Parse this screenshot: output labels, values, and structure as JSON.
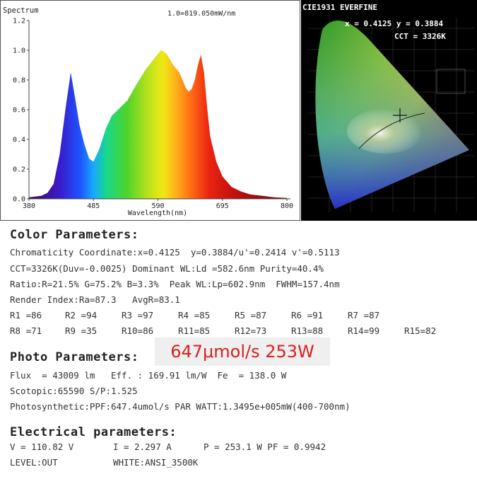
{
  "spectrum": {
    "title": "Spectrum",
    "scale_note": "1.0=819.050mW/nm",
    "xlabel": "Wavelength(nm)",
    "x_ticks": [
      "380",
      "485",
      "590",
      "695",
      "800"
    ],
    "y_ticks": [
      "0.0",
      "0.2",
      "0.4",
      "0.6",
      "0.8",
      "1.0",
      "1.2"
    ]
  },
  "chart_data": {
    "type": "area",
    "title": "Spectrum",
    "xlabel": "Wavelength(nm)",
    "ylabel": "",
    "xlim": [
      380,
      800
    ],
    "ylim": [
      0,
      1.2
    ],
    "x": [
      380,
      400,
      410,
      420,
      430,
      440,
      448,
      455,
      462,
      470,
      478,
      485,
      495,
      505,
      515,
      525,
      540,
      555,
      570,
      585,
      595,
      600,
      605,
      615,
      625,
      635,
      640,
      645,
      650,
      655,
      660,
      665,
      670,
      675,
      685,
      695,
      710,
      725,
      740,
      760,
      780,
      800
    ],
    "y": [
      0.01,
      0.02,
      0.04,
      0.1,
      0.3,
      0.62,
      0.85,
      0.68,
      0.5,
      0.37,
      0.27,
      0.25,
      0.34,
      0.47,
      0.56,
      0.6,
      0.66,
      0.77,
      0.87,
      0.95,
      1.0,
      0.99,
      0.97,
      0.9,
      0.85,
      0.75,
      0.72,
      0.74,
      0.8,
      0.9,
      0.97,
      0.85,
      0.62,
      0.42,
      0.25,
      0.15,
      0.08,
      0.05,
      0.03,
      0.02,
      0.01,
      0.005
    ]
  },
  "cie": {
    "title": "CIE1931 EVERFINE",
    "xy_readout": "x = 0.4125 y = 0.3884",
    "cct_readout": "CCT = 3326K"
  },
  "color_params": {
    "heading": "Color Parameters:",
    "line1": "Chromaticity Coordinate:x=0.4125  y=0.3884/u'=0.2414 v'=0.5113",
    "line2": "CCT=3326K(Duv=-0.0025) Dominant WL:Ld =582.6nm Purity=40.4%",
    "line3": "Ratio:R=21.5% G=75.2% B=3.3%  Peak WL:Lp=602.9nm  FWHM=157.4nm",
    "line4": "Render Index:Ra=87.3   AvgR=83.1",
    "r_values": [
      "R1 =86",
      "R2 =94",
      "R3 =97",
      "R4 =85",
      "R5 =87",
      "R6 =91",
      "R7 =87",
      "R8 =71",
      "R9 =35",
      "R10=86",
      "R11=85",
      "R12=73",
      "R13=88",
      "R14=99",
      "R15=82"
    ]
  },
  "photo_params": {
    "heading": "Photo Parameters:",
    "banner": "647μmol/s 253W",
    "line1": "Flux  = 43009 lm   Eff. : 169.91 lm/W  Fe  = 138.0 W",
    "line2": "Scotopic:65590 S/P:1.525",
    "line3": "Photosynthetic:PPF:647.4umol/s PAR WATT:1.3495e+005mW(400-700nm)"
  },
  "electrical_params": {
    "heading": "Electrical parameters:",
    "v": "V = 110.82 V",
    "i": "I = 2.297 A",
    "p": "P = 253.1 W PF = 0.9942",
    "level": "LEVEL:OUT",
    "white": "WHITE:ANSI_3500K"
  }
}
